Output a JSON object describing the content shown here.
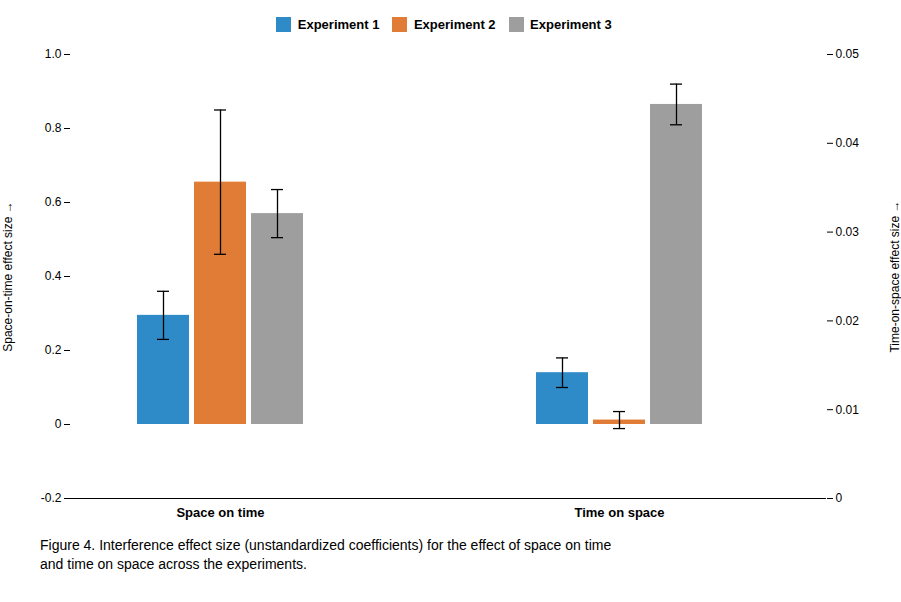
{
  "chart_data": {
    "type": "bar",
    "categories": [
      "Space on time",
      "Time on space"
    ],
    "series": [
      {
        "name": "Experiment 1",
        "color": "#2e8bc8",
        "values": [
          0.295,
          0.14
        ],
        "errors": [
          0.065,
          0.04
        ]
      },
      {
        "name": "Experiment 2",
        "color": "#e07c35",
        "values": [
          0.655,
          0.012
        ],
        "errors": [
          0.195,
          0.023
        ]
      },
      {
        "name": "Experiment 3",
        "color": "#9e9e9e",
        "values": [
          0.57,
          0.865
        ],
        "errors": [
          0.065,
          0.055
        ]
      }
    ],
    "ylabel": "Space-on-time effect size",
    "ylim": [
      -0.2,
      1.0
    ],
    "yticks": [
      -0.2,
      0,
      0.2,
      0.4,
      0.6,
      0.8,
      {
        "value": 1.0,
        "label": "1.0"
      }
    ],
    "y2label": "Time-on-space effect size",
    "y2lim": [
      0,
      0.05
    ],
    "y2ticks": [
      0,
      0.01,
      0.02,
      0.03,
      0.04,
      0.05
    ],
    "legend": "upper center",
    "grid": false,
    "caption": [
      "Figure 4. Interference effect size (unstandardized coefficients) for the effect of space on time",
      "and time on space across the experiments."
    ]
  }
}
